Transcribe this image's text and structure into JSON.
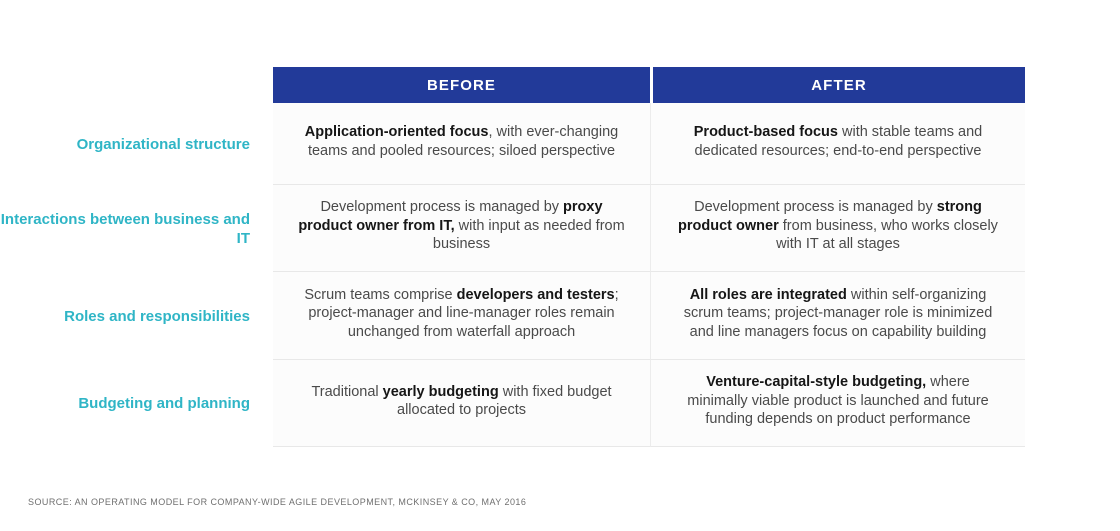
{
  "table": {
    "columns": [
      {
        "label": "BEFORE"
      },
      {
        "label": "AFTER"
      }
    ],
    "rows": [
      {
        "label": "Organizational structure",
        "before": [
          {
            "text": "Application-oriented focus",
            "bold": true
          },
          {
            "text": ", with ever-changing teams and pooled resources; siloed perspective",
            "bold": false
          }
        ],
        "after": [
          {
            "text": "Product-based focus",
            "bold": true
          },
          {
            "text": " with stable teams and dedicated resources; end-to-end perspective",
            "bold": false
          }
        ]
      },
      {
        "label": "Interactions between business and IT",
        "before": [
          {
            "text": "Development process is managed by ",
            "bold": false
          },
          {
            "text": "proxy product owner from IT,",
            "bold": true
          },
          {
            "text": " with input as needed from business",
            "bold": false
          }
        ],
        "after": [
          {
            "text": "Development process is managed by ",
            "bold": false
          },
          {
            "text": "strong product owner",
            "bold": true
          },
          {
            "text": " from business, who works closely with IT at all stages",
            "bold": false
          }
        ]
      },
      {
        "label": "Roles and responsibilities",
        "before": [
          {
            "text": "Scrum teams comprise ",
            "bold": false
          },
          {
            "text": "developers and testers",
            "bold": true
          },
          {
            "text": "; project-manager and line-manager roles remain unchanged from waterfall approach",
            "bold": false
          }
        ],
        "after": [
          {
            "text": "All roles are integrated",
            "bold": true
          },
          {
            "text": " within self-organizing scrum teams; project-manager role is minimized and line managers focus on capability building",
            "bold": false
          }
        ]
      },
      {
        "label": "Budgeting and planning",
        "before": [
          {
            "text": "Traditional ",
            "bold": false
          },
          {
            "text": "yearly budgeting",
            "bold": true
          },
          {
            "text": " with fixed budget allocated to projects",
            "bold": false
          }
        ],
        "after": [
          {
            "text": "Venture-capital-style budgeting,",
            "bold": true
          },
          {
            "text": " where minimally viable product is launched and future funding depends on product performance",
            "bold": false
          }
        ]
      }
    ]
  },
  "footer": {
    "source": "SOURCE: AN OPERATING MODEL FOR COMPANY-WIDE AGILE DEVELOPMENT,  MCKINSEY & CO, MAY 2016"
  },
  "colors": {
    "header_bg": "#223a99",
    "row_label": "#2fb5c6",
    "body_text": "#4a4a4a",
    "bold_text": "#161616",
    "divider": "#e8e8e8",
    "cell_bg": "#fcfcfc",
    "source_text": "#6f6f6f"
  }
}
